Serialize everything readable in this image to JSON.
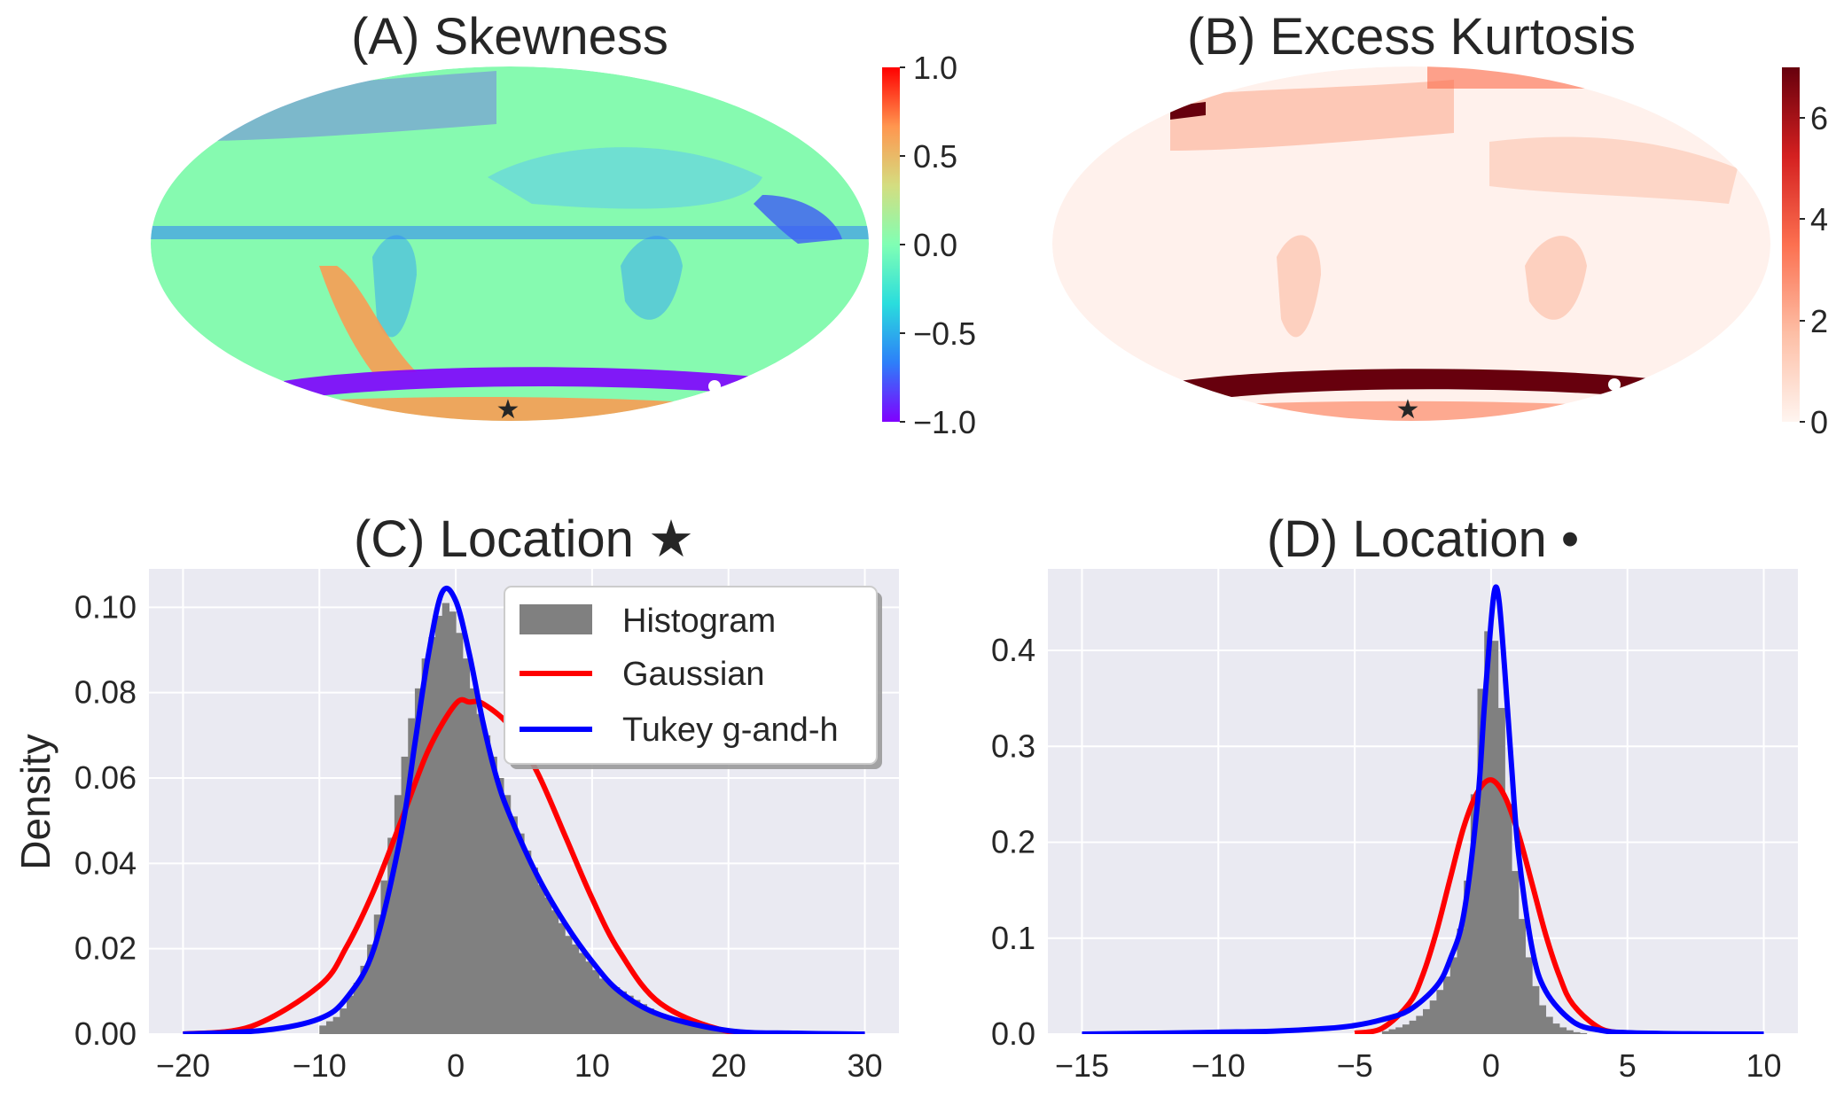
{
  "chart_data": [
    {
      "type": "heatmap",
      "panel": "A",
      "title": "(A) Skewness",
      "projection": "mollweide",
      "colormap": "rainbow",
      "colorbar": {
        "range": [
          -1.0,
          1.0
        ],
        "ticks": [
          "1.0",
          "0.5",
          "0.0",
          "−0.5",
          "−1.0"
        ]
      },
      "markers": [
        {
          "name": "star",
          "symbol": "★",
          "lon": 0,
          "lat": -72
        },
        {
          "name": "dot",
          "symbol": "●",
          "lon": 130,
          "lat": -63
        }
      ],
      "colors": [
        "#8000ff",
        "#2d7ff9",
        "#2adddd",
        "#80ffb4",
        "#d4dd80",
        "#ff964f",
        "#ff0000"
      ]
    },
    {
      "type": "heatmap",
      "panel": "B",
      "title": "(B) Excess Kurtosis",
      "projection": "mollweide",
      "colormap": "reds",
      "colorbar": {
        "range": [
          0,
          7
        ],
        "ticks": [
          "6",
          "4",
          "2",
          "0"
        ]
      },
      "markers": [
        {
          "name": "star",
          "symbol": "★",
          "lon": 0,
          "lat": -72
        },
        {
          "name": "dot",
          "symbol": "●",
          "lon": 130,
          "lat": -63
        }
      ],
      "colors": [
        "#fff5f0",
        "#fdbea5",
        "#fc7050",
        "#d42020",
        "#67000d"
      ]
    },
    {
      "type": "bar",
      "panel": "C",
      "title": "(C) Location ★",
      "xlabel": "",
      "ylabel": "Density",
      "xlim": [
        -22.5,
        32.5
      ],
      "ylim": [
        0,
        0.109
      ],
      "xticks": [
        "−20",
        "−10",
        "0",
        "10",
        "20",
        "30"
      ],
      "yticks": [
        "0.00",
        "0.02",
        "0.04",
        "0.06",
        "0.08",
        "0.10"
      ],
      "grid": true,
      "legend": "top-right",
      "histogram": {
        "name": "Histogram",
        "x": [
          -10,
          -9.5,
          -9,
          -8.5,
          -8,
          -7.5,
          -7,
          -6.5,
          -6,
          -5.5,
          -5,
          -4.5,
          -4,
          -3.5,
          -3,
          -2.5,
          -2,
          -1.5,
          -1,
          -0.5,
          0,
          0.5,
          1,
          1.5,
          2,
          2.5,
          3,
          3.5,
          4,
          4.5,
          5,
          5.5,
          6,
          6.5,
          7,
          7.5,
          8,
          8.5,
          9,
          9.5,
          10,
          10.5,
          11,
          11.5,
          12,
          12.5,
          13,
          13.5,
          14,
          14.5,
          15,
          15.5,
          16,
          16.5,
          17,
          17.5,
          18,
          18.5,
          19,
          19.5
        ],
        "values": [
          0.002,
          0.003,
          0.004,
          0.006,
          0.009,
          0.012,
          0.016,
          0.021,
          0.028,
          0.036,
          0.046,
          0.056,
          0.065,
          0.074,
          0.081,
          0.088,
          0.093,
          0.098,
          0.101,
          0.099,
          0.094,
          0.088,
          0.081,
          0.075,
          0.07,
          0.065,
          0.06,
          0.056,
          0.051,
          0.047,
          0.043,
          0.039,
          0.035,
          0.032,
          0.029,
          0.026,
          0.023,
          0.021,
          0.019,
          0.017,
          0.015,
          0.013,
          0.012,
          0.011,
          0.01,
          0.009,
          0.008,
          0.007,
          0.006,
          0.005,
          0.0045,
          0.004,
          0.0035,
          0.003,
          0.0025,
          0.002,
          0.002,
          0.0015,
          0.001,
          0.001
        ],
        "color": "#808080"
      },
      "series": [
        {
          "name": "Gaussian",
          "color": "#ff0000",
          "x": [
            -20,
            -15,
            -10,
            -8,
            -6,
            -4,
            -2,
            0,
            1,
            2,
            4,
            6,
            8,
            10,
            12,
            15,
            20,
            25,
            30
          ],
          "values": [
            0.0,
            0.0018,
            0.0113,
            0.0205,
            0.0337,
            0.05,
            0.0666,
            0.0774,
            0.0778,
            0.0774,
            0.072,
            0.0612,
            0.0466,
            0.0318,
            0.0194,
            0.0072,
            0.0006,
            0.0,
            0.0
          ]
        },
        {
          "name": "Tukey g-and-h",
          "color": "#0000ff",
          "x": [
            -20,
            -14,
            -10,
            -8,
            -6,
            -4,
            -3,
            -2,
            -1,
            0,
            1,
            2,
            3,
            4,
            6,
            8,
            10,
            12,
            15,
            20,
            25,
            30
          ],
          "values": [
            0.0,
            0.0009,
            0.0036,
            0.0085,
            0.02,
            0.047,
            0.068,
            0.089,
            0.1035,
            0.1015,
            0.089,
            0.073,
            0.06,
            0.051,
            0.037,
            0.026,
            0.017,
            0.01,
            0.0045,
            0.0008,
            0.0002,
            0.0
          ]
        }
      ]
    },
    {
      "type": "bar",
      "panel": "D",
      "title": "(D) Location •",
      "xlabel": "",
      "ylabel": "",
      "xlim": [
        -16.25,
        11.25
      ],
      "ylim": [
        0,
        0.485
      ],
      "xticks": [
        "−15",
        "−10",
        "−5",
        "0",
        "5",
        "10"
      ],
      "yticks": [
        "0.0",
        "0.1",
        "0.2",
        "0.3",
        "0.4"
      ],
      "grid": true,
      "histogram": {
        "name": "Histogram",
        "x": [
          -4,
          -3.75,
          -3.5,
          -3.25,
          -3,
          -2.75,
          -2.5,
          -2.25,
          -2,
          -1.75,
          -1.5,
          -1.25,
          -1,
          -0.75,
          -0.5,
          -0.25,
          0,
          0.25,
          0.5,
          0.75,
          1,
          1.25,
          1.5,
          1.75,
          2,
          2.25,
          2.5,
          2.75,
          3,
          3.25
        ],
        "values": [
          0.003,
          0.005,
          0.007,
          0.01,
          0.014,
          0.019,
          0.026,
          0.035,
          0.046,
          0.06,
          0.08,
          0.11,
          0.16,
          0.25,
          0.36,
          0.42,
          0.41,
          0.34,
          0.24,
          0.17,
          0.12,
          0.08,
          0.05,
          0.03,
          0.018,
          0.011,
          0.007,
          0.004,
          0.002,
          0.001
        ],
        "color": "#808080"
      },
      "series": [
        {
          "name": "Gaussian",
          "color": "#ff0000",
          "x": [
            -5,
            -4,
            -3,
            -2.5,
            -2,
            -1.5,
            -1,
            -0.5,
            0,
            0.5,
            1,
            1.5,
            2,
            2.5,
            3,
            4,
            5
          ],
          "values": [
            0.001,
            0.006,
            0.032,
            0.062,
            0.107,
            0.162,
            0.216,
            0.252,
            0.265,
            0.248,
            0.209,
            0.157,
            0.104,
            0.061,
            0.031,
            0.006,
            0.001
          ]
        },
        {
          "name": "Tukey g-and-h",
          "color": "#0000ff",
          "x": [
            -15,
            -12,
            -10,
            -8,
            -6,
            -5,
            -4,
            -3,
            -2,
            -1.5,
            -1,
            -0.5,
            -0.25,
            0,
            0.15,
            0.3,
            0.5,
            0.75,
            1,
            1.5,
            2,
            3,
            4,
            5,
            7,
            10
          ],
          "values": [
            0.0,
            0.001,
            0.002,
            0.003,
            0.006,
            0.009,
            0.015,
            0.025,
            0.05,
            0.078,
            0.125,
            0.24,
            0.34,
            0.43,
            0.465,
            0.45,
            0.38,
            0.28,
            0.19,
            0.09,
            0.045,
            0.013,
            0.004,
            0.0015,
            0.0004,
            0.0
          ]
        }
      ]
    }
  ]
}
